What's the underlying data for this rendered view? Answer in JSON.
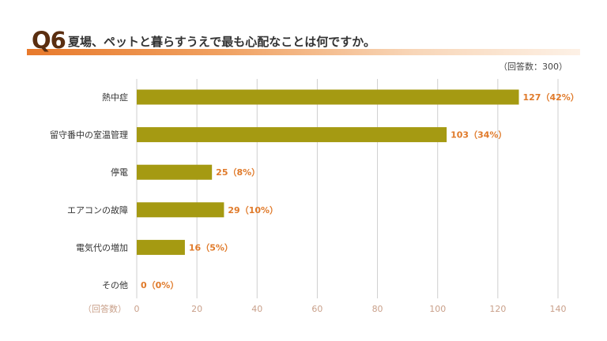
{
  "header": {
    "q_number": "Q6",
    "question": "夏場、ペットと暮らすうえで最も心配なことは何ですか。",
    "respondents": "（回答数：300）"
  },
  "colors": {
    "bar": "#a59a12",
    "grid": "#cfcfcf",
    "accent": "#e87a2c",
    "data_label": "#e07a2a"
  },
  "chart_data": {
    "type": "bar",
    "orientation": "horizontal",
    "categories": [
      "熱中症",
      "留守番中の室温管理",
      "停電",
      "エアコンの故障",
      "電気代の増加",
      "その他"
    ],
    "values": [
      127,
      103,
      25,
      29,
      16,
      0
    ],
    "data_labels": [
      "127（42%）",
      "103（34%）",
      "25（8%）",
      "29（10%）",
      "16（5%）",
      "0（0%）"
    ],
    "x_axis_title": "（回答数）",
    "xlim": [
      0,
      140
    ],
    "xticks": [
      0,
      20,
      40,
      60,
      80,
      100,
      120,
      140
    ],
    "grid": true
  }
}
